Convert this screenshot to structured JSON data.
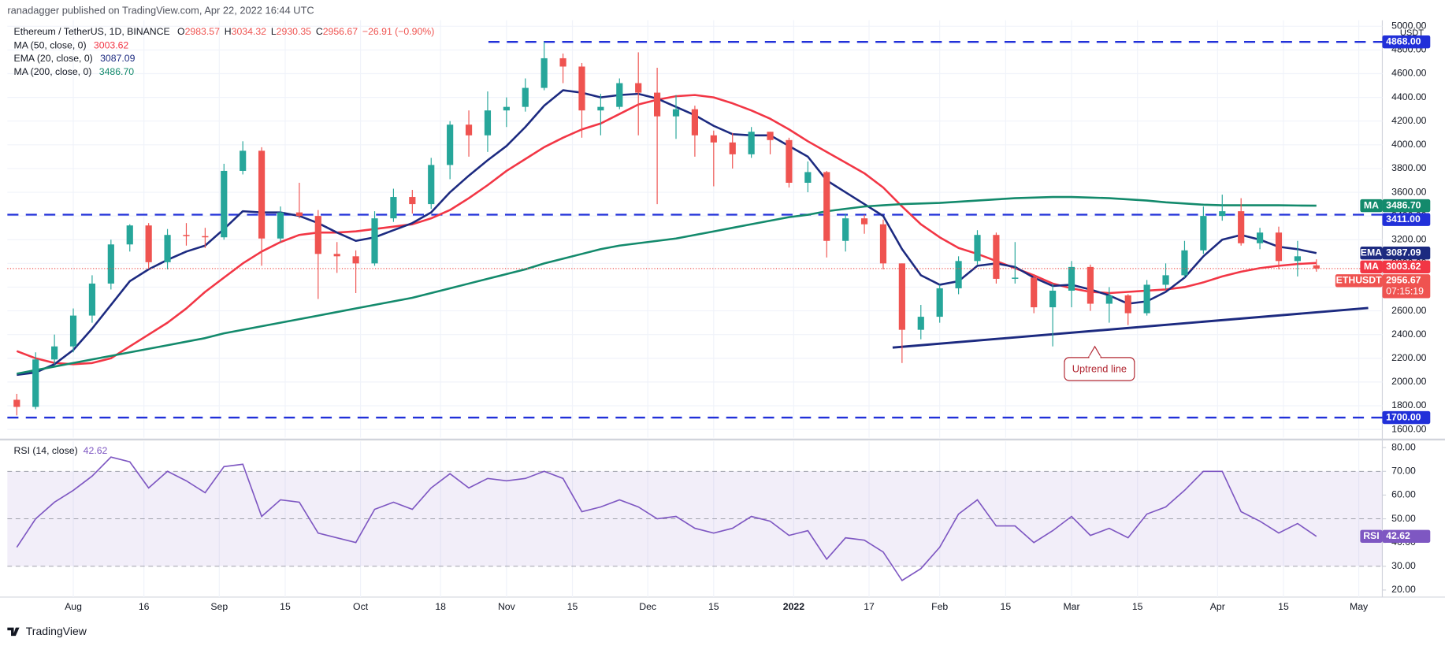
{
  "header": {
    "publisher": "ranadagger published on TradingView.com, Apr 22, 2022 16:44 UTC"
  },
  "chart_data": [
    {
      "type": "candlestick",
      "title": "Ethereum / TetherUS, 1D, BINANCE",
      "ohlc_labels": [
        "O",
        "H",
        "L",
        "C"
      ],
      "change": "−26.91 (−0.90%)",
      "currency": "USDT",
      "ticker": "ETHUSDT",
      "countdown": "07:15:19",
      "up_color": "#26a69a",
      "down_color": "#ef5350",
      "x": [
        "2021-07-20",
        "2021-07-24",
        "2021-07-28",
        "2021-08-01",
        "2021-08-05",
        "2021-08-09",
        "2021-08-13",
        "2021-08-17",
        "2021-08-21",
        "2021-08-25",
        "2021-08-29",
        "2021-09-02",
        "2021-09-06",
        "2021-09-10",
        "2021-09-14",
        "2021-09-18",
        "2021-09-22",
        "2021-09-26",
        "2021-09-30",
        "2021-10-04",
        "2021-10-08",
        "2021-10-12",
        "2021-10-16",
        "2021-10-20",
        "2021-10-24",
        "2021-10-28",
        "2021-11-01",
        "2021-11-05",
        "2021-11-09",
        "2021-11-13",
        "2021-11-17",
        "2021-11-21",
        "2021-11-25",
        "2021-11-29",
        "2021-12-03",
        "2021-12-07",
        "2021-12-11",
        "2021-12-15",
        "2021-12-19",
        "2021-12-23",
        "2021-12-27",
        "2021-12-31",
        "2022-01-04",
        "2022-01-08",
        "2022-01-12",
        "2022-01-16",
        "2022-01-20",
        "2022-01-24",
        "2022-01-28",
        "2022-02-01",
        "2022-02-05",
        "2022-02-09",
        "2022-02-13",
        "2022-02-17",
        "2022-02-21",
        "2022-02-25",
        "2022-03-01",
        "2022-03-05",
        "2022-03-09",
        "2022-03-13",
        "2022-03-17",
        "2022-03-21",
        "2022-03-25",
        "2022-03-29",
        "2022-04-02",
        "2022-04-06",
        "2022-04-10",
        "2022-04-14",
        "2022-04-18",
        "2022-04-22"
      ],
      "open": [
        1850,
        1790,
        2190,
        2300,
        2560,
        2830,
        3160,
        3320,
        3010,
        3240,
        3230,
        3220,
        3780,
        3950,
        3210,
        3430,
        3400,
        3080,
        3060,
        3000,
        3380,
        3560,
        3500,
        3830,
        4170,
        4080,
        4290,
        4320,
        4480,
        4730,
        4660,
        4290,
        4320,
        4520,
        4440,
        4240,
        4300,
        4080,
        4020,
        3920,
        4110,
        4040,
        3680,
        3770,
        3190,
        3380,
        3330,
        3000,
        2440,
        2550,
        2790,
        3020,
        3240,
        2870,
        2880,
        2630,
        2770,
        2970,
        2660,
        2730,
        2580,
        2820,
        2900,
        3110,
        3400,
        3440,
        3170,
        3260,
        3020,
        2983.57
      ],
      "high": [
        1900,
        2250,
        2400,
        2620,
        2900,
        3200,
        3330,
        3340,
        3290,
        3340,
        3300,
        3840,
        4030,
        3980,
        3480,
        3680,
        3450,
        3180,
        3110,
        3440,
        3630,
        3620,
        3890,
        4200,
        4290,
        4450,
        4400,
        4560,
        4868,
        4770,
        4690,
        4430,
        4560,
        4780,
        4650,
        4420,
        4330,
        4120,
        4100,
        4150,
        4110,
        4060,
        3860,
        3780,
        3420,
        3410,
        3370,
        3000,
        2650,
        2820,
        3060,
        3280,
        3260,
        3180,
        2910,
        2830,
        3020,
        2990,
        2800,
        2740,
        2860,
        3000,
        3190,
        3480,
        3580,
        3550,
        3300,
        3310,
        3190,
        3034.32
      ],
      "low": [
        1718,
        1770,
        2150,
        2250,
        2500,
        2780,
        3100,
        2960,
        2950,
        3150,
        3130,
        3200,
        3750,
        2980,
        3180,
        3380,
        2700,
        2920,
        2750,
        2980,
        3350,
        3420,
        3460,
        3710,
        3900,
        3940,
        4150,
        4280,
        4460,
        4520,
        4060,
        4080,
        4300,
        4080,
        3500,
        4050,
        3900,
        3650,
        3800,
        3890,
        3920,
        3640,
        3600,
        3050,
        3100,
        3250,
        2950,
        2160,
        2360,
        2500,
        2740,
        2990,
        2830,
        2830,
        2580,
        2300,
        2630,
        2600,
        2500,
        2480,
        2560,
        2780,
        2880,
        3080,
        3360,
        3150,
        3120,
        2950,
        2890,
        2930.35
      ],
      "close": [
        1790,
        2190,
        2300,
        2560,
        2830,
        3160,
        3320,
        3010,
        3240,
        3230,
        3220,
        3780,
        3950,
        3210,
        3430,
        3400,
        3080,
        3060,
        3000,
        3380,
        3560,
        3500,
        3830,
        4170,
        4080,
        4290,
        4320,
        4480,
        4730,
        4660,
        4290,
        4320,
        4520,
        4440,
        4240,
        4300,
        4080,
        4020,
        3920,
        4110,
        4040,
        3680,
        3770,
        3190,
        3380,
        3330,
        3000,
        2440,
        2550,
        2790,
        3020,
        3240,
        2870,
        2880,
        2630,
        2770,
        2970,
        2660,
        2730,
        2580,
        2820,
        2900,
        3110,
        3400,
        3440,
        3170,
        3260,
        3020,
        3060,
        2956.67
      ],
      "series": [
        {
          "name": "MA (50, close, 0)",
          "short": "MA",
          "color": "#f23645",
          "last_label": "3003.62",
          "values": [
            2260,
            2200,
            2160,
            2150,
            2160,
            2200,
            2300,
            2400,
            2500,
            2620,
            2760,
            2880,
            3000,
            3100,
            3180,
            3240,
            3260,
            3260,
            3270,
            3290,
            3310,
            3330,
            3380,
            3450,
            3550,
            3660,
            3780,
            3880,
            3980,
            4060,
            4130,
            4180,
            4260,
            4340,
            4380,
            4410,
            4420,
            4400,
            4350,
            4290,
            4220,
            4130,
            4030,
            3940,
            3850,
            3760,
            3640,
            3480,
            3330,
            3220,
            3130,
            3080,
            3020,
            2960,
            2900,
            2830,
            2790,
            2760,
            2750,
            2760,
            2770,
            2780,
            2800,
            2840,
            2890,
            2930,
            2960,
            2980,
            2995,
            3003.62
          ]
        },
        {
          "name": "EMA (20, close, 0)",
          "short": "EMA",
          "color": "#1c2a80",
          "last_label": "3087.09",
          "values": [
            2060,
            2080,
            2150,
            2270,
            2450,
            2650,
            2850,
            2950,
            3030,
            3100,
            3150,
            3290,
            3440,
            3430,
            3430,
            3400,
            3340,
            3260,
            3190,
            3220,
            3280,
            3340,
            3430,
            3600,
            3740,
            3870,
            3990,
            4150,
            4330,
            4460,
            4440,
            4400,
            4420,
            4430,
            4390,
            4320,
            4250,
            4160,
            4090,
            4080,
            4080,
            3990,
            3900,
            3700,
            3600,
            3500,
            3400,
            3120,
            2900,
            2820,
            2850,
            2980,
            3000,
            2970,
            2880,
            2810,
            2820,
            2780,
            2730,
            2660,
            2680,
            2760,
            2880,
            3060,
            3200,
            3240,
            3200,
            3140,
            3120,
            3087.09
          ]
        },
        {
          "name": "MA (200, close, 0)",
          "short": "MA",
          "color": "#138a6c",
          "last_label": "3486.70",
          "values": [
            2070,
            2100,
            2130,
            2160,
            2190,
            2220,
            2250,
            2280,
            2310,
            2340,
            2370,
            2410,
            2440,
            2470,
            2500,
            2530,
            2560,
            2590,
            2620,
            2650,
            2680,
            2710,
            2750,
            2790,
            2830,
            2870,
            2910,
            2950,
            3000,
            3040,
            3080,
            3120,
            3150,
            3170,
            3190,
            3210,
            3240,
            3270,
            3300,
            3330,
            3360,
            3390,
            3410,
            3440,
            3460,
            3480,
            3490,
            3500,
            3505,
            3510,
            3520,
            3530,
            3540,
            3550,
            3555,
            3560,
            3560,
            3555,
            3550,
            3540,
            3530,
            3515,
            3505,
            3495,
            3490,
            3490,
            3490,
            3490,
            3488,
            3486.7
          ]
        }
      ],
      "hline_color": "#2130d9",
      "hlines": [
        {
          "value": 4868,
          "label": "4868.00"
        },
        {
          "value": 3411,
          "label": "3411.00"
        },
        {
          "value": 1700,
          "label": "1700.00"
        }
      ],
      "trendline": {
        "label": "Uptrend line",
        "color": "#1c2a80",
        "x": [
          "2022-01-22",
          "2022-05-03"
        ],
        "values": [
          2290,
          2624
        ]
      },
      "xlim": [
        "2021-07-18",
        "2022-05-06"
      ],
      "xticks": [
        {
          "value": "2021-08-01",
          "label": "Aug"
        },
        {
          "value": "2021-08-16",
          "label": "16"
        },
        {
          "value": "2021-09-01",
          "label": "Sep"
        },
        {
          "value": "2021-09-15",
          "label": "15"
        },
        {
          "value": "2021-10-01",
          "label": "Oct"
        },
        {
          "value": "2021-10-18",
          "label": "18"
        },
        {
          "value": "2021-11-01",
          "label": "Nov"
        },
        {
          "value": "2021-11-15",
          "label": "15"
        },
        {
          "value": "2021-12-01",
          "label": "Dec"
        },
        {
          "value": "2021-12-15",
          "label": "15"
        },
        {
          "value": "2022-01-01",
          "label": "2022"
        },
        {
          "value": "2022-01-17",
          "label": "17"
        },
        {
          "value": "2022-02-01",
          "label": "Feb"
        },
        {
          "value": "2022-02-15",
          "label": "15"
        },
        {
          "value": "2022-03-01",
          "label": "Mar"
        },
        {
          "value": "2022-03-15",
          "label": "15"
        },
        {
          "value": "2022-04-01",
          "label": "Apr"
        },
        {
          "value": "2022-04-15",
          "label": "15"
        },
        {
          "value": "2022-05-01",
          "label": "May"
        }
      ],
      "ylim": [
        1530,
        5050
      ],
      "yticks": [
        {
          "value": 1600,
          "label": "1600.00"
        },
        {
          "value": 1800,
          "label": "1800.00"
        },
        {
          "value": 2000,
          "label": "2000.00"
        },
        {
          "value": 2200,
          "label": "2200.00"
        },
        {
          "value": 2400,
          "label": "2400.00"
        },
        {
          "value": 2600,
          "label": "2600.00"
        },
        {
          "value": 2800,
          "label": "2800.00"
        },
        {
          "value": 3000,
          "label": "3000.00"
        },
        {
          "value": 3200,
          "label": "3200.00"
        },
        {
          "value": 3400,
          "label": "3400.00"
        },
        {
          "value": 3600,
          "label": "3600.00"
        },
        {
          "value": 3800,
          "label": "3800.00"
        },
        {
          "value": 4000,
          "label": "4000.00"
        },
        {
          "value": 4200,
          "label": "4200.00"
        },
        {
          "value": 4400,
          "label": "4400.00"
        },
        {
          "value": 4600,
          "label": "4600.00"
        },
        {
          "value": 4800,
          "label": "4800.00"
        },
        {
          "value": 5000,
          "label": "5000.00"
        }
      ],
      "grid": true
    },
    {
      "type": "line",
      "title": "RSI (14, close)",
      "short": "RSI",
      "color": "#7e57c2",
      "value_label": "42.62",
      "x": [
        "2021-07-20",
        "2021-07-24",
        "2021-07-28",
        "2021-08-01",
        "2021-08-05",
        "2021-08-09",
        "2021-08-13",
        "2021-08-17",
        "2021-08-21",
        "2021-08-25",
        "2021-08-29",
        "2021-09-02",
        "2021-09-06",
        "2021-09-10",
        "2021-09-14",
        "2021-09-18",
        "2021-09-22",
        "2021-09-26",
        "2021-09-30",
        "2021-10-04",
        "2021-10-08",
        "2021-10-12",
        "2021-10-16",
        "2021-10-20",
        "2021-10-24",
        "2021-10-28",
        "2021-11-01",
        "2021-11-05",
        "2021-11-09",
        "2021-11-13",
        "2021-11-17",
        "2021-11-21",
        "2021-11-25",
        "2021-11-29",
        "2021-12-03",
        "2021-12-07",
        "2021-12-11",
        "2021-12-15",
        "2021-12-19",
        "2021-12-23",
        "2021-12-27",
        "2021-12-31",
        "2022-01-04",
        "2022-01-08",
        "2022-01-12",
        "2022-01-16",
        "2022-01-20",
        "2022-01-24",
        "2022-01-28",
        "2022-02-01",
        "2022-02-05",
        "2022-02-09",
        "2022-02-13",
        "2022-02-17",
        "2022-02-21",
        "2022-02-25",
        "2022-03-01",
        "2022-03-05",
        "2022-03-09",
        "2022-03-13",
        "2022-03-17",
        "2022-03-21",
        "2022-03-25",
        "2022-03-29",
        "2022-04-02",
        "2022-04-06",
        "2022-04-10",
        "2022-04-14",
        "2022-04-18",
        "2022-04-22"
      ],
      "values": [
        38,
        50,
        57,
        62,
        68,
        76,
        74,
        63,
        70,
        66,
        61,
        72,
        73,
        51,
        58,
        57,
        44,
        42,
        40,
        54,
        57,
        54,
        63,
        69,
        63,
        67,
        66,
        67,
        70,
        67,
        53,
        55,
        58,
        55,
        50,
        51,
        46,
        44,
        46,
        51,
        49,
        43,
        45,
        33,
        42,
        41,
        36,
        24,
        29,
        38,
        52,
        58,
        47,
        47,
        40,
        45,
        51,
        43,
        46,
        42,
        52,
        55,
        62,
        70,
        70,
        53,
        49,
        44,
        48,
        42.62
      ],
      "band": [
        30,
        70
      ],
      "levels": [
        70,
        50,
        30
      ],
      "xlim": [
        "2021-07-18",
        "2022-05-06"
      ],
      "ylim": [
        17,
        83
      ],
      "yticks": [
        {
          "value": 20,
          "label": "20.00"
        },
        {
          "value": 30,
          "label": "30.00"
        },
        {
          "value": 40,
          "label": "40.00"
        },
        {
          "value": 50,
          "label": "50.00"
        },
        {
          "value": 60,
          "label": "60.00"
        },
        {
          "value": 70,
          "label": "70.00"
        },
        {
          "value": 80,
          "label": "80.00"
        }
      ]
    }
  ],
  "footer": {
    "brand": "TradingView"
  }
}
